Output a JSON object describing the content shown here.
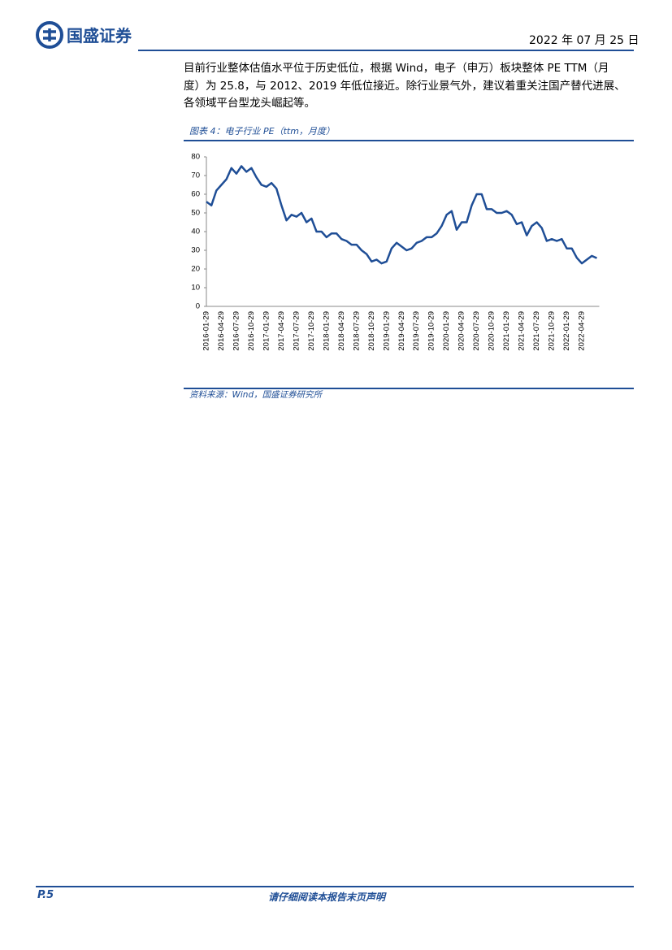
{
  "header": {
    "logo": "国盛证券",
    "date": "2022 年 07 月 25 日"
  },
  "body": {
    "lines": [
      "目前行业整体估值水平位于历史低位，根据 Wind，电子（申万）板块整体 PE TTM（月",
      "度）为 25.8，与 2012、2019 年低位接近。除行业景气外，建议着重关注国产替代进展、",
      "各领域平台型龙头崛起等。"
    ]
  },
  "chart_data": {
    "type": "line",
    "title": "图表 4：电子行业 PE（ttm，月度）",
    "categories": [
      "2016-01-29",
      null,
      null,
      "2016-04-29",
      null,
      null,
      "2016-07-29",
      null,
      null,
      "2016-10-29",
      null,
      null,
      "2017-01-29",
      null,
      null,
      "2017-04-29",
      null,
      null,
      "2017-07-29",
      null,
      null,
      "2017-10-29",
      null,
      null,
      "2018-01-29",
      null,
      null,
      "2018-04-29",
      null,
      null,
      "2018-07-29",
      null,
      null,
      "2018-10-29",
      null,
      null,
      "2019-01-29",
      null,
      null,
      "2019-04-29",
      null,
      null,
      "2019-07-29",
      null,
      null,
      "2019-10-29",
      null,
      null,
      "2020-01-29",
      null,
      null,
      "2020-04-29",
      null,
      null,
      "2020-07-29",
      null,
      null,
      "2020-10-29",
      null,
      null,
      "2021-01-29",
      null,
      null,
      "2021-04-29",
      null,
      null,
      "2021-07-29",
      null,
      null,
      "2021-10-29",
      null,
      null,
      "2022-01-29",
      null,
      null,
      "2022-04-29",
      null,
      null,
      null
    ],
    "values": [
      56,
      54,
      62,
      65,
      68,
      74,
      71,
      75,
      72,
      74,
      69,
      65,
      64,
      66,
      63,
      54,
      46,
      49,
      48,
      50,
      45,
      47,
      40,
      40,
      37,
      39,
      39,
      36,
      35,
      33,
      33,
      30,
      28,
      24,
      25,
      23,
      24,
      31,
      34,
      32,
      30,
      31,
      34,
      35,
      37,
      37,
      39,
      43,
      49,
      51,
      41,
      45,
      45,
      54,
      60,
      60,
      52,
      52,
      50,
      50,
      51,
      49,
      44,
      45,
      38,
      43,
      45,
      42,
      35,
      36,
      35,
      36,
      31,
      31,
      26,
      23,
      25,
      27,
      25.8
    ],
    "color": "#1f4e96",
    "ylim": [
      0,
      80
    ],
    "yticks": [
      0,
      10,
      20,
      30,
      40,
      50,
      60,
      70,
      80
    ],
    "grid": false,
    "source": "资料来源：Wind，国盛证券研究所"
  },
  "footer": {
    "page": "P.5",
    "notice": "请仔细阅读本报告末页声明"
  }
}
